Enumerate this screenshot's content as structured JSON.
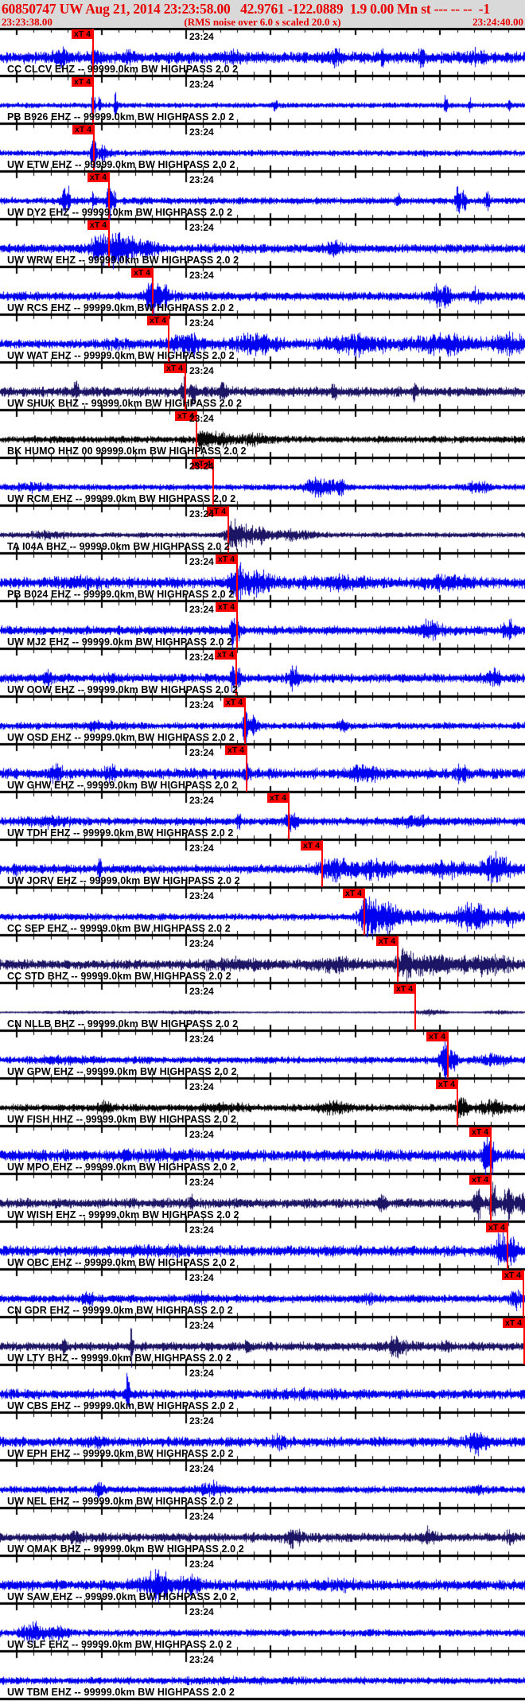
{
  "header": {
    "title_line": "60850747 UW Aug 21, 2014 23:23:58.00   42.9761 -122.0889  1.9 0.00 Mn st --- -- --  -1",
    "event_id": "60850747",
    "network": "UW",
    "origin_date": "Aug 21, 2014",
    "origin_time": "23:23:58.00",
    "latitude": "42.9761",
    "longitude": "-122.0889",
    "magnitude": "1.9",
    "magnitude_type": "Mn"
  },
  "timebar": {
    "start": "23:23:38.00",
    "note": "(RMS noise over 6.0 s scaled 20.0 x)",
    "end": "23:24:40.00"
  },
  "minute_label": "23:24",
  "pick_flag_label": "xT 4",
  "colors": {
    "blue": "#0000f0",
    "dark": "#1c1464",
    "black": "#060606",
    "pick_red": "#ff0000",
    "header_text": "#e80000",
    "header_bg": "#d9d9d9"
  },
  "traces": [
    {
      "label": "CC CLCV EHZ -- 99999.0km BW HIGHPASS 2.0 2",
      "color": "blue",
      "pick": 117,
      "base": 6,
      "bursts": [
        [
          75,
          8,
          6
        ],
        [
          117,
          6,
          8
        ],
        [
          160,
          5,
          6
        ],
        [
          290,
          10,
          5
        ],
        [
          420,
          8,
          6
        ],
        [
          480,
          6,
          5
        ],
        [
          530,
          4,
          7
        ],
        [
          600,
          8,
          5
        ]
      ]
    },
    {
      "label": "PB B926 EHZ -- 99999.0km BW HIGHPASS 2.0 2",
      "color": "blue",
      "pick": 117,
      "base": 2.5,
      "bursts": [
        [
          117,
          2,
          20
        ],
        [
          125,
          2,
          12
        ],
        [
          145,
          2,
          10
        ],
        [
          345,
          3,
          5
        ],
        [
          560,
          2,
          14
        ],
        [
          590,
          2,
          8
        ],
        [
          640,
          2,
          7
        ]
      ]
    },
    {
      "label": "UW ETW EHZ -- 99999.0km BW HIGHPASS 2.0 2",
      "color": "blue",
      "pick": 118,
      "base": 3,
      "bursts": [
        [
          117,
          3,
          26
        ],
        [
          130,
          8,
          6
        ]
      ]
    },
    {
      "label": "UW DY2 EHZ -- 99999.0km BW HIGHPASS 2.0 2",
      "color": "blue",
      "pick": 137,
      "base": 3.5,
      "bursts": [
        [
          80,
          3,
          14
        ],
        [
          86,
          2,
          10
        ],
        [
          118,
          3,
          8
        ],
        [
          137,
          3,
          18
        ],
        [
          143,
          2,
          12
        ],
        [
          500,
          3,
          12
        ],
        [
          575,
          3,
          16
        ],
        [
          583,
          3,
          10
        ],
        [
          612,
          3,
          8
        ]
      ]
    },
    {
      "label": "UW WRW EHZ -- 99999.0km BW HIGHPASS 2.0 2",
      "color": "blue",
      "pick": 137,
      "base": 4.5,
      "bursts": [
        [
          125,
          12,
          10
        ],
        [
          150,
          18,
          16
        ],
        [
          185,
          12,
          8
        ],
        [
          420,
          10,
          5
        ]
      ]
    },
    {
      "label": "UW RCS EHZ -- 99999.0km BW HIGHPASS 2.0 2",
      "color": "blue",
      "pick": 192,
      "base": 4.5,
      "bursts": [
        [
          192,
          8,
          16
        ],
        [
          205,
          10,
          8
        ],
        [
          555,
          12,
          10
        ],
        [
          600,
          8,
          6
        ]
      ]
    },
    {
      "label": "UW WAT EHZ -- 99999.0km BW HIGHPASS 2.0 2",
      "color": "blue",
      "pick": 212,
      "base": 4.5,
      "bursts": [
        [
          150,
          20,
          3
        ],
        [
          230,
          25,
          9
        ],
        [
          320,
          30,
          8
        ],
        [
          450,
          40,
          8
        ],
        [
          560,
          40,
          9
        ],
        [
          640,
          20,
          9
        ]
      ]
    },
    {
      "label": "UW SHUK BHZ -- 99999.0km BW HIGHPASS 2.0 2",
      "color": "dark",
      "pick": 233,
      "base": 5,
      "bursts": [
        [
          95,
          3,
          10
        ],
        [
          230,
          3,
          14
        ],
        [
          242,
          3,
          12
        ],
        [
          280,
          5,
          7
        ],
        [
          420,
          3,
          6
        ],
        [
          520,
          3,
          6
        ]
      ]
    },
    {
      "label": "BK HUMO HHZ 00 99999.0km BW HIGHPASS 2.0 2",
      "color": "black",
      "pick": 247,
      "base": 3.5,
      "bursts": [
        [
          255,
          8,
          8
        ],
        [
          275,
          15,
          6
        ],
        [
          320,
          20,
          4
        ]
      ]
    },
    {
      "label": "UW RCM EHZ -- 99999.0km BW HIGHPASS 2.0 2",
      "color": "blue",
      "pick": 268,
      "base": 3,
      "bursts": [
        [
          40,
          20,
          3
        ],
        [
          400,
          15,
          9
        ],
        [
          425,
          10,
          7
        ],
        [
          600,
          15,
          4
        ]
      ]
    },
    {
      "label": "TA I04A BHZ -- 99999.0km BW HIGHPASS 2.0 2",
      "color": "dark",
      "pick": 287,
      "base": 2.5,
      "bursts": [
        [
          60,
          25,
          3
        ],
        [
          295,
          12,
          13
        ],
        [
          320,
          20,
          8
        ],
        [
          370,
          25,
          4
        ]
      ]
    },
    {
      "label": "PB B024 EHZ -- 99999.0km BW HIGHPASS 2.0 2",
      "color": "blue",
      "pick": 298,
      "base": 5.5,
      "bursts": [
        [
          100,
          30,
          3
        ],
        [
          298,
          8,
          16
        ],
        [
          320,
          25,
          8
        ],
        [
          420,
          40,
          4
        ],
        [
          560,
          30,
          5
        ]
      ]
    },
    {
      "label": "UW MJ2 EHZ -- 99999.0km BW HIGHPASS 2.0 2",
      "color": "blue",
      "pick": 298,
      "base": 4.5,
      "bursts": [
        [
          292,
          2,
          24
        ],
        [
          298,
          3,
          14
        ],
        [
          540,
          15,
          7
        ],
        [
          640,
          8,
          9
        ]
      ]
    },
    {
      "label": "UW OOW EHZ -- 99999.0km BW HIGHPASS 2.0 2",
      "color": "blue",
      "pick": 297,
      "base": 4.5,
      "bursts": [
        [
          60,
          6,
          5
        ],
        [
          140,
          5,
          5
        ],
        [
          292,
          2,
          24
        ],
        [
          300,
          4,
          10
        ],
        [
          370,
          6,
          10
        ],
        [
          620,
          10,
          6
        ]
      ]
    },
    {
      "label": "UW OSD EHZ -- 99999.0km BW HIGHPASS 2.0 2",
      "color": "blue",
      "pick": 308,
      "base": 3.5,
      "bursts": [
        [
          130,
          25,
          3
        ],
        [
          308,
          3,
          20
        ],
        [
          318,
          6,
          8
        ],
        [
          430,
          6,
          5
        ]
      ]
    },
    {
      "label": "UW GHW EHZ -- 99999.0km BW HIGHPASS 2.0 2",
      "color": "blue",
      "pick": 310,
      "base": 5.5,
      "bursts": [
        [
          70,
          8,
          7
        ],
        [
          140,
          8,
          6
        ],
        [
          310,
          3,
          12
        ],
        [
          460,
          15,
          6
        ],
        [
          580,
          6,
          6
        ]
      ]
    },
    {
      "label": "UW TDH EHZ -- 99999.0km BW HIGHPASS 2.0 2",
      "color": "blue",
      "pick": 363,
      "base": 4,
      "bursts": [
        [
          60,
          30,
          4
        ],
        [
          300,
          3,
          8
        ],
        [
          365,
          8,
          9
        ],
        [
          520,
          20,
          4
        ]
      ]
    },
    {
      "label": "UW JORV EHZ -- 99999.0km BW HIGHPASS 2.0 2",
      "color": "blue",
      "pick": 405,
      "base": 4.5,
      "bursts": [
        [
          20,
          3,
          8
        ],
        [
          125,
          2,
          20
        ],
        [
          420,
          20,
          9
        ],
        [
          470,
          30,
          7
        ],
        [
          560,
          25,
          7
        ],
        [
          625,
          20,
          13
        ]
      ]
    },
    {
      "label": "CC SEP EHZ -- 99999.0km BW HIGHPASS 2.0 2",
      "color": "blue",
      "pick": 458,
      "base": 3.5,
      "bursts": [
        [
          462,
          10,
          22
        ],
        [
          485,
          20,
          14
        ],
        [
          530,
          20,
          6
        ],
        [
          595,
          25,
          13
        ],
        [
          640,
          15,
          7
        ]
      ]
    },
    {
      "label": "CC STD BHZ -- 99999.0km BW HIGHPASS 2.0 2",
      "color": "dark",
      "pick": 500,
      "base": 5,
      "bursts": [
        [
          300,
          40,
          3
        ],
        [
          420,
          30,
          4
        ],
        [
          510,
          12,
          12
        ],
        [
          545,
          25,
          8
        ],
        [
          610,
          30,
          7
        ]
      ]
    },
    {
      "label": "CN NLLB BHZ -- 99999.0km BW HIGHPASS 2.0 2",
      "color": "dark",
      "pick": 522,
      "base": 0.7,
      "bursts": [
        [
          90,
          30,
          1.2
        ],
        [
          240,
          40,
          1.2
        ],
        [
          540,
          18,
          3
        ],
        [
          630,
          20,
          1.5
        ]
      ]
    },
    {
      "label": "UW GPW EHZ -- 99999.0km BW HIGHPASS 2.0 2",
      "color": "blue",
      "pick": 563,
      "base": 3.5,
      "bursts": [
        [
          80,
          40,
          2
        ],
        [
          558,
          5,
          25
        ],
        [
          568,
          6,
          12
        ],
        [
          620,
          20,
          4
        ]
      ]
    },
    {
      "label": "UW FISH HHZ -- 99999.0km BW HIGHPASS 2.0 2",
      "color": "black",
      "pick": 575,
      "base": 3.5,
      "bursts": [
        [
          130,
          10,
          4
        ],
        [
          280,
          30,
          3
        ],
        [
          420,
          20,
          5
        ],
        [
          580,
          8,
          10
        ],
        [
          620,
          20,
          6
        ]
      ]
    },
    {
      "label": "UW MPO EHZ -- 99999.0km BW HIGHPASS 2.0 2",
      "color": "blue",
      "pick": 617,
      "base": 6,
      "bursts": [
        [
          200,
          50,
          2
        ],
        [
          610,
          4,
          22
        ],
        [
          618,
          4,
          14
        ]
      ]
    },
    {
      "label": "UW WISH EHZ -- 99999.0km BW HIGHPASS 2.0 2",
      "color": "dark",
      "pick": 617,
      "base": 5,
      "bursts": [
        [
          240,
          3,
          7
        ],
        [
          480,
          4,
          7
        ],
        [
          600,
          6,
          14
        ],
        [
          620,
          5,
          18
        ],
        [
          638,
          6,
          16
        ],
        [
          655,
          5,
          10
        ]
      ]
    },
    {
      "label": "UW OBC EHZ -- 99999.0km BW HIGHPASS 2.0 2",
      "color": "blue",
      "pick": 638,
      "base": 5.5,
      "bursts": [
        [
          200,
          40,
          2
        ],
        [
          630,
          8,
          16
        ],
        [
          645,
          6,
          10
        ]
      ]
    },
    {
      "label": "CN GDR EHZ -- 99999.0km BW HIGHPASS 2.0 2",
      "color": "blue",
      "pick": 658,
      "base": 4,
      "bursts": [
        [
          110,
          8,
          5
        ],
        [
          250,
          10,
          4
        ],
        [
          460,
          15,
          3
        ],
        [
          648,
          8,
          8
        ]
      ]
    },
    {
      "label": "UW LTY BHZ -- 99999.0km BW HIGHPASS 2.0 2",
      "color": "dark",
      "pick": 659,
      "base": 4.5,
      "bursts": [
        [
          80,
          3,
          9
        ],
        [
          165,
          2,
          17
        ],
        [
          310,
          3,
          7
        ],
        [
          500,
          12,
          8
        ],
        [
          560,
          4,
          6
        ]
      ]
    },
    {
      "label": "UW CBS EHZ -- 99999.0km BW HIGHPASS 2.0 2",
      "color": "blue",
      "pick": null,
      "base": 5,
      "bursts": [
        [
          160,
          2,
          22
        ],
        [
          380,
          40,
          2
        ]
      ]
    },
    {
      "label": "UW EPH EHZ -- 99999.0km BW HIGHPASS 2.0 2",
      "color": "blue",
      "pick": null,
      "base": 5,
      "bursts": [
        [
          120,
          10,
          4
        ],
        [
          350,
          10,
          4
        ],
        [
          600,
          12,
          9
        ]
      ]
    },
    {
      "label": "UW NEL EHZ -- 99999.0km BW HIGHPASS 2.0 2",
      "color": "blue",
      "pick": null,
      "base": 3.5,
      "bursts": [
        [
          125,
          5,
          7
        ],
        [
          265,
          15,
          6
        ],
        [
          600,
          10,
          4
        ]
      ]
    },
    {
      "label": "UW OMAK BHZ -- 99999.0km BW HIGHPASS 2.0 2",
      "color": "dark",
      "pick": null,
      "base": 4.5,
      "bursts": [
        [
          95,
          6,
          7
        ],
        [
          370,
          10,
          8
        ],
        [
          538,
          8,
          7
        ],
        [
          640,
          6,
          5
        ]
      ]
    },
    {
      "label": "UW SAW EHZ -- 99999.0km BW HIGHPASS 2.0 2",
      "color": "blue",
      "pick": null,
      "base": 5.5,
      "bursts": [
        [
          200,
          20,
          12
        ],
        [
          240,
          15,
          6
        ],
        [
          420,
          30,
          3
        ]
      ]
    },
    {
      "label": "UW SLF EHZ -- 99999.0km BW HIGHPASS 2.0 2",
      "color": "blue",
      "pick": null,
      "base": 3.5,
      "bursts": [
        [
          40,
          12,
          10
        ],
        [
          70,
          15,
          5
        ]
      ]
    },
    {
      "label": "UW TBM EHZ -- 99999.0km BW HIGHPASS 2.0 2",
      "color": "blue",
      "pick": null,
      "base": 3.5,
      "bursts": [
        [
          300,
          100,
          1
        ]
      ]
    }
  ]
}
